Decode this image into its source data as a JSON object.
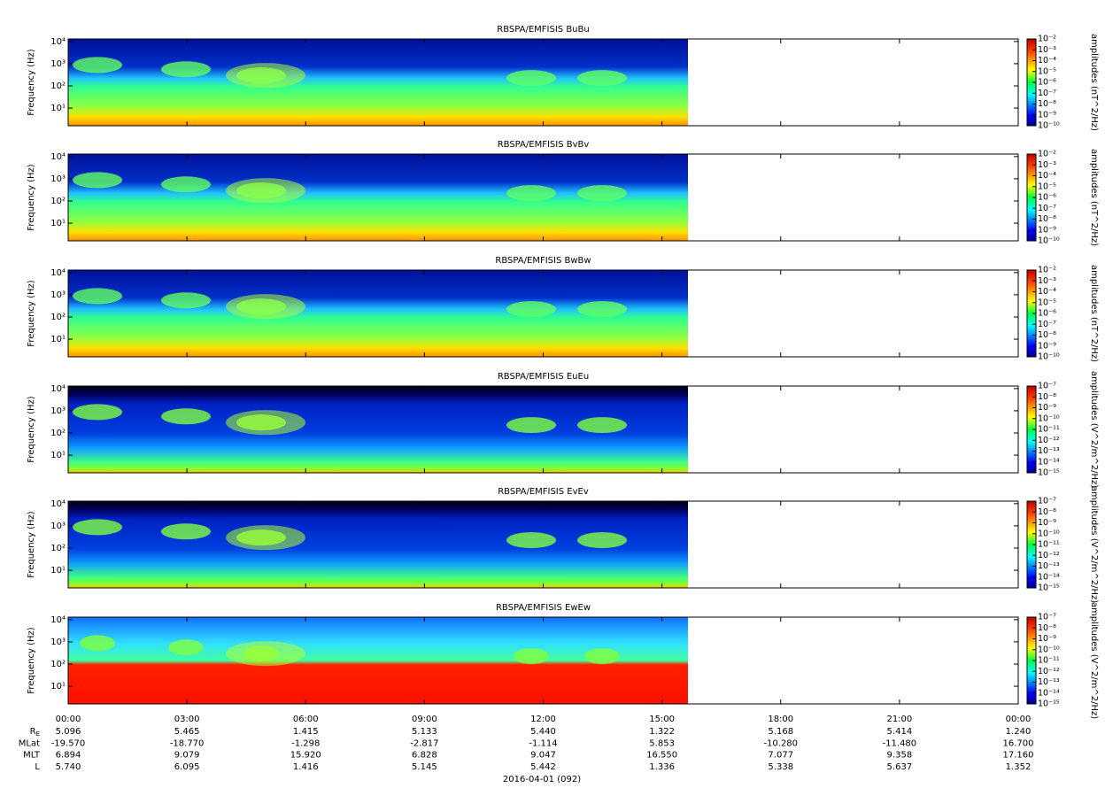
{
  "chart_data": [
    {
      "type": "spectrogram",
      "title": "RBSPA/EMFISIS  BuBu",
      "ylabel": "Frequency (Hz)",
      "ylog": true,
      "ylim": [
        1.6,
        13000
      ],
      "yticks": [
        {
          "value": 10,
          "label": "10¹"
        },
        {
          "value": 100,
          "label": "10²"
        },
        {
          "value": 1000,
          "label": "10³"
        },
        {
          "value": 10000,
          "label": "10⁴"
        }
      ],
      "clim": [
        1e-10,
        0.01
      ],
      "clabel": "amplitudes (nT^2/Hz)",
      "cticks": [
        {
          "value": 1e-10,
          "label": "10⁻¹⁰"
        },
        {
          "value": 1e-09,
          "label": "10⁻⁹"
        },
        {
          "value": 1e-08,
          "label": "10⁻⁸"
        },
        {
          "value": 1e-07,
          "label": "10⁻⁷"
        },
        {
          "value": 1e-06,
          "label": "10⁻⁶"
        },
        {
          "value": 1e-05,
          "label": "10⁻⁵"
        },
        {
          "value": 0.0001,
          "label": "10⁻⁴"
        },
        {
          "value": 0.001,
          "label": "10⁻³"
        },
        {
          "value": 0.01,
          "label": "10⁻²"
        }
      ]
    },
    {
      "type": "spectrogram",
      "title": "RBSPA/EMFISIS  BvBv",
      "ylabel": "Frequency (Hz)",
      "ylog": true,
      "ylim": [
        1.6,
        13000
      ],
      "yticks": [
        {
          "value": 10,
          "label": "10¹"
        },
        {
          "value": 100,
          "label": "10²"
        },
        {
          "value": 1000,
          "label": "10³"
        },
        {
          "value": 10000,
          "label": "10⁴"
        }
      ],
      "clim": [
        1e-10,
        0.01
      ],
      "clabel": "amplitudes (nT^2/Hz)",
      "cticks": [
        {
          "value": 1e-10,
          "label": "10⁻¹⁰"
        },
        {
          "value": 1e-09,
          "label": "10⁻⁹"
        },
        {
          "value": 1e-08,
          "label": "10⁻⁸"
        },
        {
          "value": 1e-07,
          "label": "10⁻⁷"
        },
        {
          "value": 1e-06,
          "label": "10⁻⁶"
        },
        {
          "value": 1e-05,
          "label": "10⁻⁵"
        },
        {
          "value": 0.0001,
          "label": "10⁻⁴"
        },
        {
          "value": 0.001,
          "label": "10⁻³"
        },
        {
          "value": 0.01,
          "label": "10⁻²"
        }
      ]
    },
    {
      "type": "spectrogram",
      "title": "RBSPA/EMFISIS  BwBw",
      "ylabel": "Frequency (Hz)",
      "ylog": true,
      "ylim": [
        1.6,
        13000
      ],
      "yticks": [
        {
          "value": 10,
          "label": "10¹"
        },
        {
          "value": 100,
          "label": "10²"
        },
        {
          "value": 1000,
          "label": "10³"
        },
        {
          "value": 10000,
          "label": "10⁴"
        }
      ],
      "clim": [
        1e-10,
        0.01
      ],
      "clabel": "amplitudes (nT^2/Hz)",
      "cticks": [
        {
          "value": 1e-10,
          "label": "10⁻¹⁰"
        },
        {
          "value": 1e-09,
          "label": "10⁻⁹"
        },
        {
          "value": 1e-08,
          "label": "10⁻⁸"
        },
        {
          "value": 1e-07,
          "label": "10⁻⁷"
        },
        {
          "value": 1e-06,
          "label": "10⁻⁶"
        },
        {
          "value": 1e-05,
          "label": "10⁻⁵"
        },
        {
          "value": 0.0001,
          "label": "10⁻⁴"
        },
        {
          "value": 0.001,
          "label": "10⁻³"
        },
        {
          "value": 0.01,
          "label": "10⁻²"
        }
      ]
    },
    {
      "type": "spectrogram",
      "title": "RBSPA/EMFISIS  EuEu",
      "ylabel": "Frequency (Hz)",
      "ylog": true,
      "ylim": [
        1.6,
        13000
      ],
      "yticks": [
        {
          "value": 10,
          "label": "10¹"
        },
        {
          "value": 100,
          "label": "10²"
        },
        {
          "value": 1000,
          "label": "10³"
        },
        {
          "value": 10000,
          "label": "10⁴"
        }
      ],
      "clim": [
        1e-15,
        1e-07
      ],
      "clabel": "amplitudes (V^2/m^2/Hz)",
      "cticks": [
        {
          "value": 1e-15,
          "label": "10⁻¹⁵"
        },
        {
          "value": 1e-14,
          "label": "10⁻¹⁴"
        },
        {
          "value": 1e-13,
          "label": "10⁻¹³"
        },
        {
          "value": 1e-12,
          "label": "10⁻¹²"
        },
        {
          "value": 1e-11,
          "label": "10⁻¹¹"
        },
        {
          "value": 1e-10,
          "label": "10⁻¹⁰"
        },
        {
          "value": 1e-09,
          "label": "10⁻⁹"
        },
        {
          "value": 1e-08,
          "label": "10⁻⁸"
        },
        {
          "value": 1e-07,
          "label": "10⁻⁷"
        }
      ]
    },
    {
      "type": "spectrogram",
      "title": "RBSPA/EMFISIS  EvEv",
      "ylabel": "Frequency (Hz)",
      "ylog": true,
      "ylim": [
        1.6,
        13000
      ],
      "yticks": [
        {
          "value": 10,
          "label": "10¹"
        },
        {
          "value": 100,
          "label": "10²"
        },
        {
          "value": 1000,
          "label": "10³"
        },
        {
          "value": 10000,
          "label": "10⁴"
        }
      ],
      "clim": [
        1e-15,
        1e-07
      ],
      "clabel": "amplitudes (V^2/m^2/Hz)",
      "cticks": [
        {
          "value": 1e-15,
          "label": "10⁻¹⁵"
        },
        {
          "value": 1e-14,
          "label": "10⁻¹⁴"
        },
        {
          "value": 1e-13,
          "label": "10⁻¹³"
        },
        {
          "value": 1e-12,
          "label": "10⁻¹²"
        },
        {
          "value": 1e-11,
          "label": "10⁻¹¹"
        },
        {
          "value": 1e-10,
          "label": "10⁻¹⁰"
        },
        {
          "value": 1e-09,
          "label": "10⁻⁹"
        },
        {
          "value": 1e-08,
          "label": "10⁻⁸"
        },
        {
          "value": 1e-07,
          "label": "10⁻⁷"
        }
      ]
    },
    {
      "type": "spectrogram",
      "title": "RBSPA/EMFISIS  EwEw",
      "ylabel": "Frequency (Hz)",
      "ylog": true,
      "ylim": [
        1.6,
        13000
      ],
      "yticks": [
        {
          "value": 10,
          "label": "10¹"
        },
        {
          "value": 100,
          "label": "10²"
        },
        {
          "value": 1000,
          "label": "10³"
        },
        {
          "value": 10000,
          "label": "10⁴"
        }
      ],
      "clim": [
        1e-15,
        1e-07
      ],
      "clabel": "amplitudes (V^2/m^2/Hz)",
      "cticks": [
        {
          "value": 1e-15,
          "label": "10⁻¹⁵"
        },
        {
          "value": 1e-14,
          "label": "10⁻¹⁴"
        },
        {
          "value": 1e-13,
          "label": "10⁻¹³"
        },
        {
          "value": 1e-12,
          "label": "10⁻¹²"
        },
        {
          "value": 1e-11,
          "label": "10⁻¹¹"
        },
        {
          "value": 1e-10,
          "label": "10⁻¹⁰"
        },
        {
          "value": 1e-09,
          "label": "10⁻⁹"
        },
        {
          "value": 1e-08,
          "label": "10⁻⁸"
        },
        {
          "value": 1e-07,
          "label": "10⁻⁷"
        }
      ]
    }
  ],
  "time_axis": {
    "xlim": [
      0,
      24
    ],
    "xticks": [
      {
        "value": 0,
        "label": "00:00"
      },
      {
        "value": 3,
        "label": "03:00"
      },
      {
        "value": 6,
        "label": "06:00"
      },
      {
        "value": 9,
        "label": "09:00"
      },
      {
        "value": 12,
        "label": "12:00"
      },
      {
        "value": 15,
        "label": "15:00"
      },
      {
        "value": 18,
        "label": "18:00"
      },
      {
        "value": 21,
        "label": "21:00"
      },
      {
        "value": 24,
        "label": "00:00"
      }
    ]
  },
  "ephemeris": {
    "rows": [
      {
        "label": "R",
        "label_sub": "E",
        "values": [
          "5.096",
          "5.465",
          "1.415",
          "5.133",
          "5.440",
          "1.322",
          "5.168",
          "5.414",
          "1.240"
        ]
      },
      {
        "label": "MLat",
        "values": [
          "-19.570",
          "-18.770",
          "-1.298",
          "-2.817",
          "-1.114",
          "5.853",
          "-10.280",
          "-11.480",
          "16.700"
        ]
      },
      {
        "label": "MLT",
        "values": [
          "6.894",
          "9.079",
          "15.920",
          "6.828",
          "9.047",
          "16.550",
          "7.077",
          "9.358",
          "17.160"
        ]
      },
      {
        "label": "L",
        "values": [
          "5.740",
          "6.095",
          "1.416",
          "5.145",
          "5.442",
          "1.336",
          "5.338",
          "5.637",
          "1.352"
        ]
      }
    ]
  },
  "date": "2016-04-01 (092)"
}
